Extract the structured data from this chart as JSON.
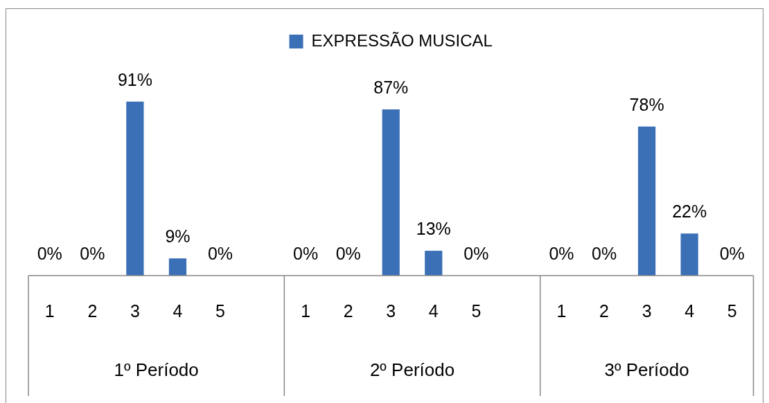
{
  "chart_data": {
    "type": "bar",
    "categories": [
      "1",
      "2",
      "3",
      "4",
      "5",
      null,
      "1",
      "2",
      "3",
      "4",
      "5",
      null,
      "1",
      "2",
      "3",
      "4",
      "5"
    ],
    "series": [
      {
        "name": "EXPRESSÃO MUSICAL",
        "color": "#3b70b7",
        "values": [
          0,
          0,
          91,
          9,
          0,
          null,
          0,
          0,
          87,
          13,
          0,
          null,
          0,
          0,
          78,
          22,
          0
        ],
        "value_labels": [
          "0%",
          "0%",
          "91%",
          "9%",
          "0%",
          null,
          "0%",
          "0%",
          "87%",
          "13%",
          "0%",
          null,
          "0%",
          "0%",
          "78%",
          "22%",
          "0%"
        ]
      }
    ],
    "annotations": [
      "1º Período",
      "2º Período",
      "3º Período"
    ],
    "legend": "top",
    "grid": false,
    "tick_labels": "x"
  }
}
